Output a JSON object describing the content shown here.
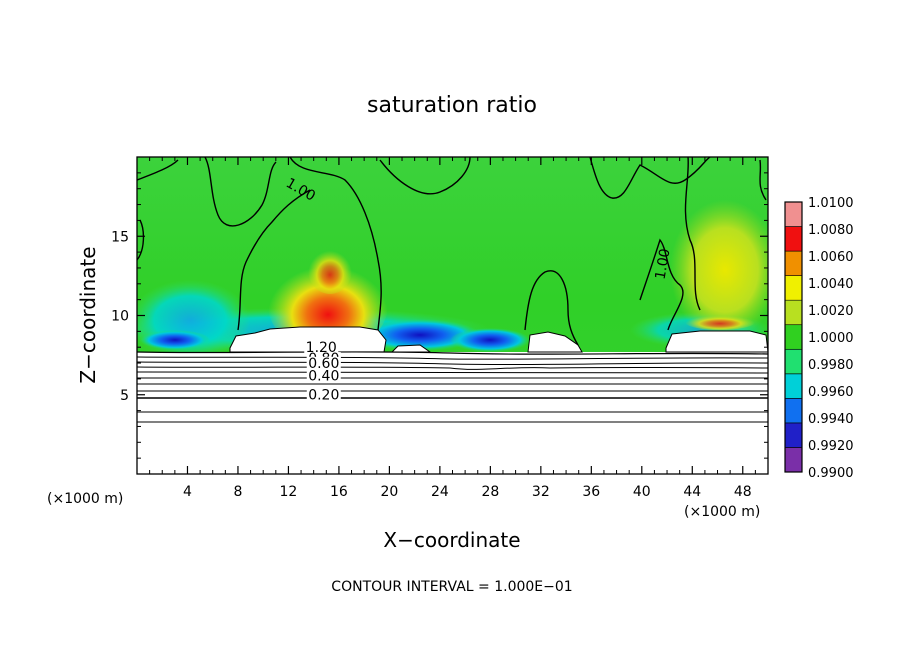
{
  "chart_data": {
    "type": "heatmap",
    "title": "saturation ratio",
    "xlabel": "X−coordinate",
    "ylabel": "Z−coordinate",
    "x_unit": "(×1000 m)",
    "y_unit": "(×1000 m)",
    "xlim": [
      0,
      50
    ],
    "ylim": [
      0,
      20
    ],
    "x_ticks": [
      4,
      8,
      12,
      16,
      20,
      24,
      28,
      32,
      36,
      40,
      44,
      48
    ],
    "y_ticks": [
      5,
      10,
      15
    ],
    "colorbar": {
      "min": 0.99,
      "max": 1.01,
      "ticks": [
        "0.9900",
        "0.9920",
        "0.9940",
        "0.9960",
        "0.9980",
        "1.0000",
        "1.0020",
        "1.0040",
        "1.0060",
        "1.0080",
        "1.0100"
      ],
      "colors": [
        "#7a2fa8",
        "#2020c8",
        "#1070f0",
        "#00d0d8",
        "#20e070",
        "#30d020",
        "#b8e020",
        "#f0f000",
        "#f09000",
        "#f01010",
        "#f09090"
      ]
    },
    "contour_interval": "CONTOUR INTERVAL = 1.000E−01",
    "contour_labels": [
      {
        "text": "1.00",
        "x": 12.8,
        "z": 17.7
      },
      {
        "text": "1.00",
        "x": 42.0,
        "z": 13.2
      },
      {
        "text": "1.20",
        "x": 14.6,
        "z": 7.7
      },
      {
        "text": "0.80",
        "x": 14.8,
        "z": 7.0
      },
      {
        "text": "0.60",
        "x": 14.8,
        "z": 6.7
      },
      {
        "text": "0.40",
        "x": 14.8,
        "z": 5.9
      },
      {
        "text": "0.20",
        "x": 14.8,
        "z": 4.7
      }
    ]
  }
}
